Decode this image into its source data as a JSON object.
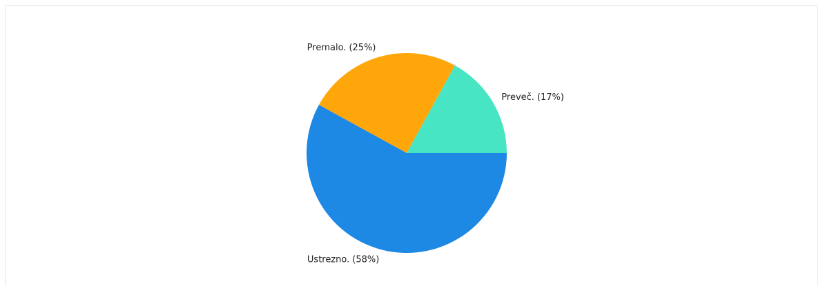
{
  "chart_data": {
    "type": "pie",
    "categories": [
      "Preveč.",
      "Premalo.",
      "Ustrezno."
    ],
    "values": [
      17,
      25,
      58
    ],
    "value_labels": [
      "(17%)",
      "(25%)",
      "(58%)"
    ],
    "colors": [
      "#48e5c4",
      "#ffa70a",
      "#1e88e5"
    ]
  }
}
